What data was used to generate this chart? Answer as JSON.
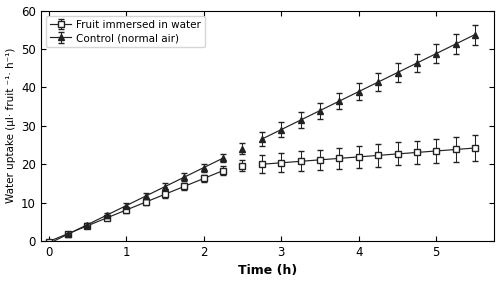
{
  "xlabel": "Time (h)",
  "ylabel": "Water uptake (μl· fruit ⁻¹· h⁻¹)",
  "xlim": [
    -0.1,
    5.75
  ],
  "ylim": [
    0,
    60
  ],
  "xticks": [
    0,
    1,
    2,
    3,
    4,
    5
  ],
  "yticks": [
    0,
    10,
    20,
    30,
    40,
    50,
    60
  ],
  "legend1": "Fruit immersed in water",
  "legend2": "Control (normal air)",
  "line_color": "#222222",
  "break_start": 2.25,
  "break_end": 2.5,
  "reg_control_slope": 9.9,
  "reg_control_intercept": -0.69,
  "reg_water_before_slope": 8.21,
  "reg_water_before_intercept": -0.14,
  "reg_during_slope": 5.06,
  "reg_during_intercept": 0.98,
  "reg_after_slope": 1.54,
  "reg_after_intercept": 3.91,
  "t_step": 0.25,
  "t_end": 5.5
}
